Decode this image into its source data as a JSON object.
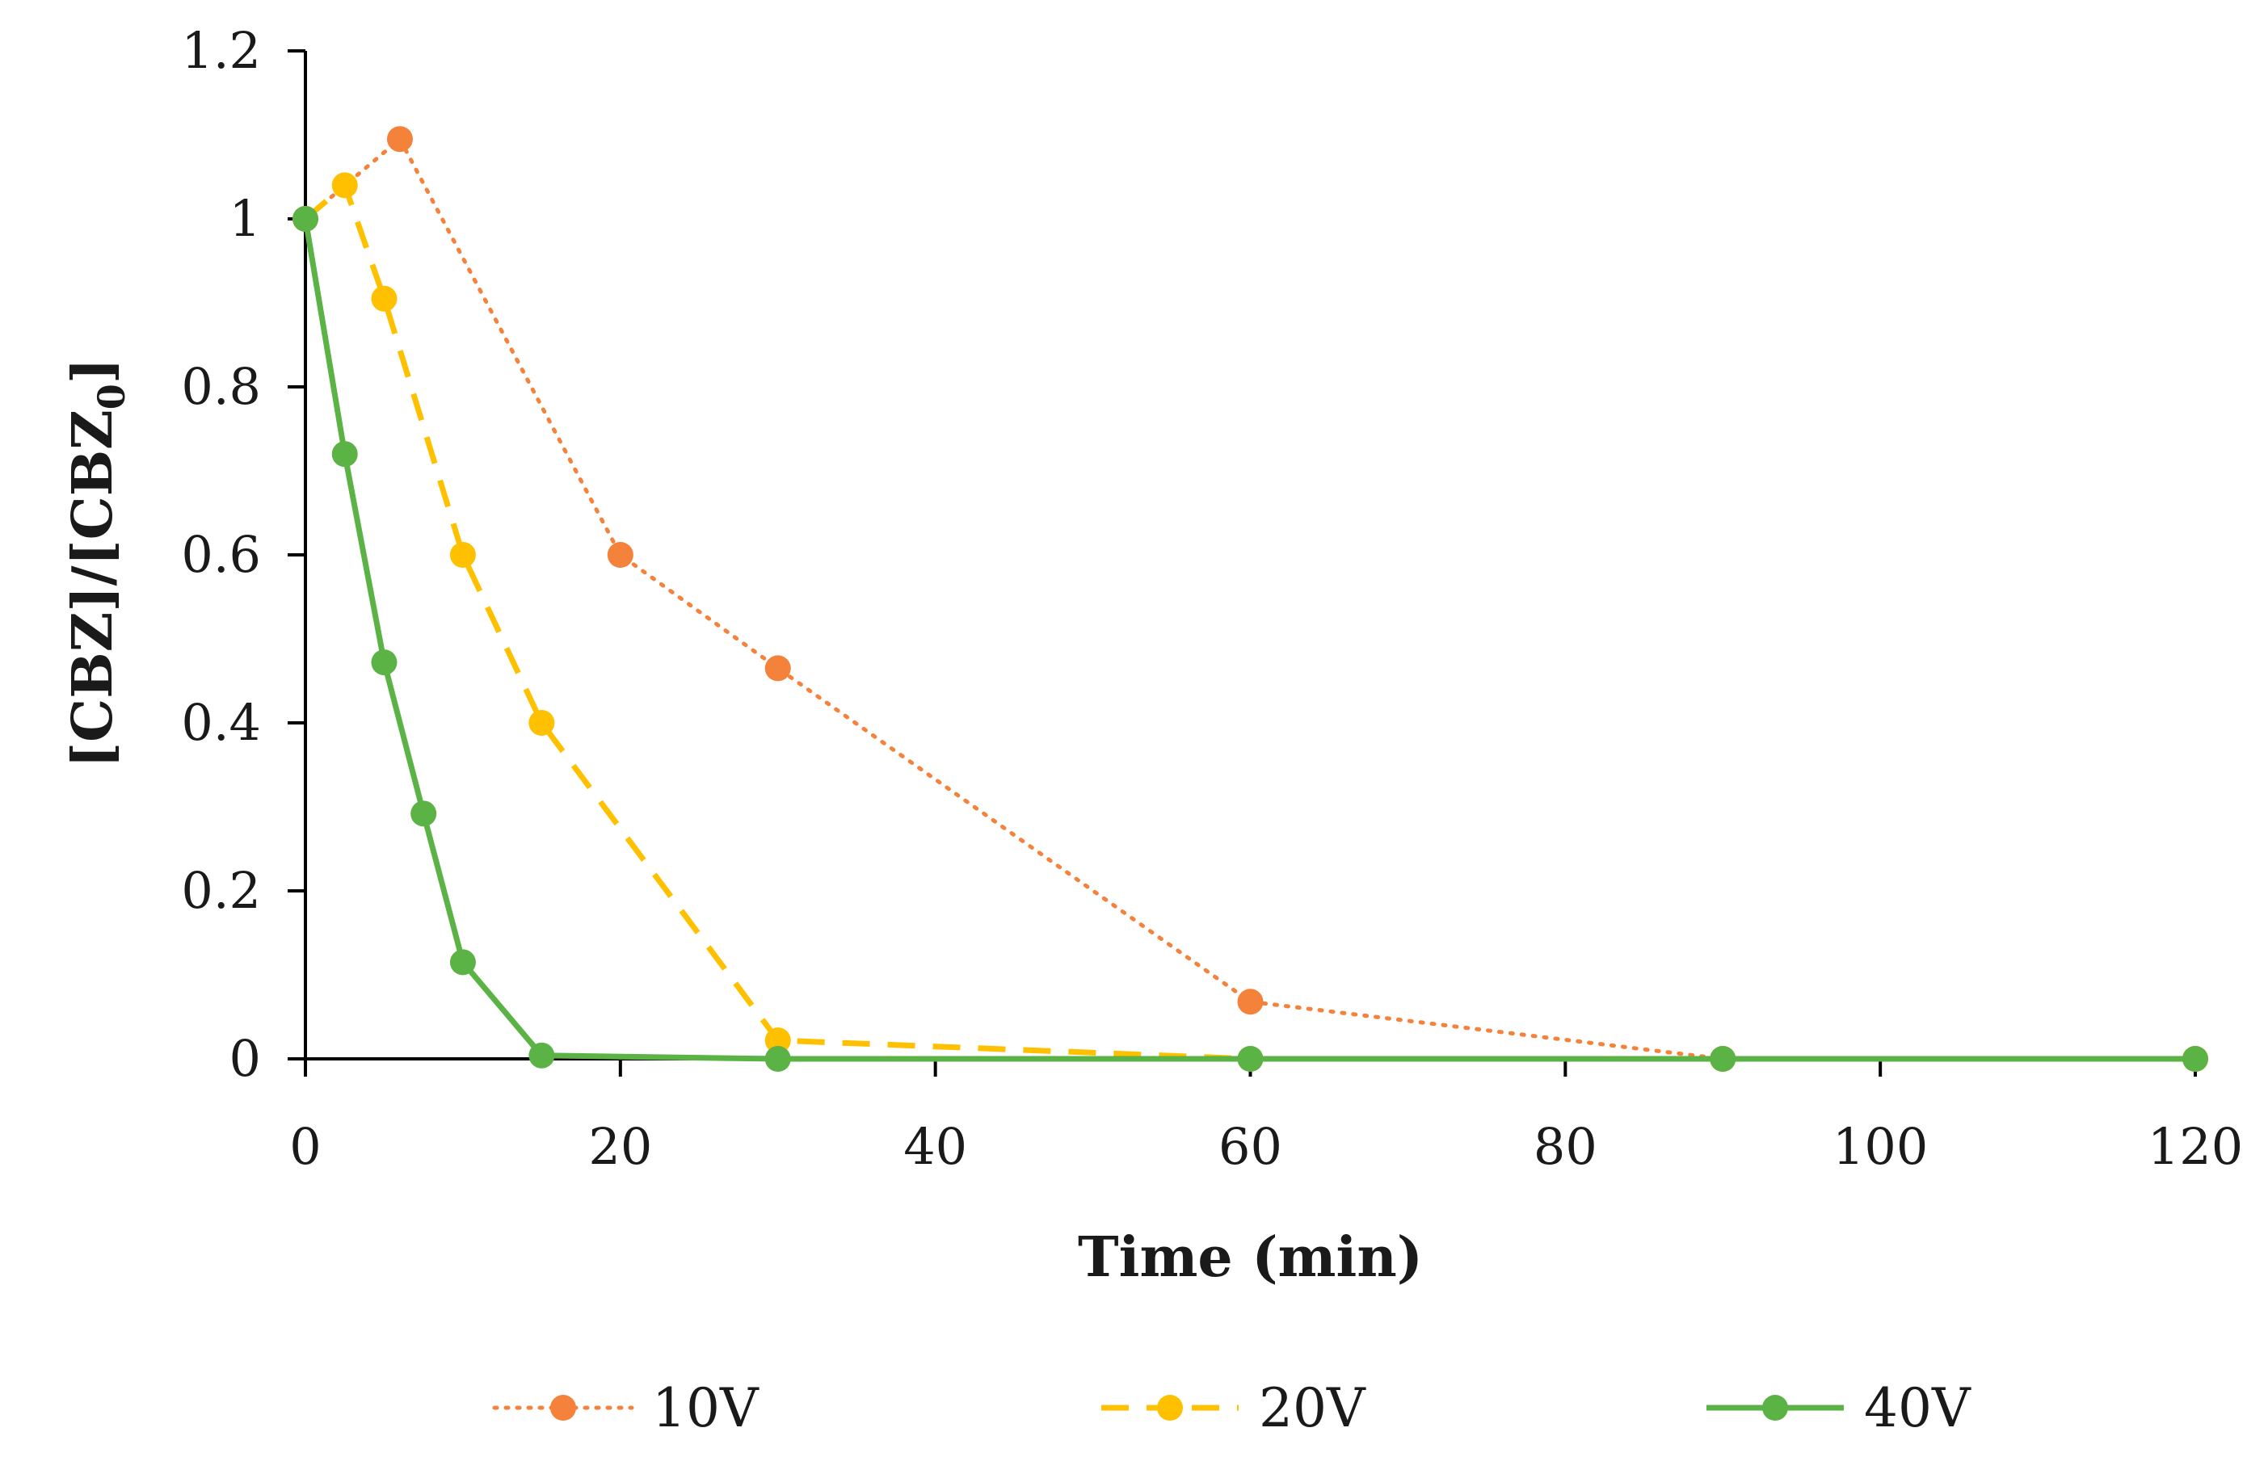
{
  "chart_data": {
    "type": "line",
    "title": "",
    "xlabel": "Time (min)",
    "ylabel": "[CBZ]/[CBZ0]",
    "ylabel_main": "[CBZ]/[CBZ",
    "ylabel_sub": "0",
    "ylabel_end": "]",
    "xlim": [
      0,
      120
    ],
    "ylim": [
      0,
      1.2
    ],
    "xticks": [
      0,
      20,
      40,
      60,
      80,
      100,
      120
    ],
    "yticks": [
      0,
      0.2,
      0.4,
      0.6,
      0.8,
      1,
      1.2
    ],
    "xtick_labels": [
      "0",
      "20",
      "40",
      "60",
      "80",
      "100",
      "120"
    ],
    "ytick_labels": [
      "0",
      "0.2",
      "0.4",
      "0.6",
      "0.8",
      "1",
      "1.2"
    ],
    "grid": false,
    "legend_position": "bottom",
    "series": [
      {
        "name": "10V",
        "color": "#F4823A",
        "line_style": "dotted",
        "x": [
          0,
          6,
          20,
          30,
          60,
          90,
          120
        ],
        "y": [
          1.0,
          1.095,
          0.6,
          0.465,
          0.068,
          0.0,
          0.0
        ]
      },
      {
        "name": "20V",
        "color": "#FFC000",
        "line_style": "dashed",
        "x": [
          0,
          2.5,
          5,
          10,
          15,
          30,
          60,
          90,
          120
        ],
        "y": [
          1.0,
          1.04,
          0.905,
          0.6,
          0.4,
          0.022,
          0.0,
          0.0,
          0.0
        ]
      },
      {
        "name": "40V",
        "color": "#5BB245",
        "line_style": "solid",
        "x": [
          0,
          2.5,
          5,
          7.5,
          10,
          15,
          30,
          60,
          90,
          120
        ],
        "y": [
          1.0,
          0.72,
          0.472,
          0.292,
          0.115,
          0.004,
          0.0,
          0.0,
          0.0,
          0.0
        ]
      }
    ]
  }
}
